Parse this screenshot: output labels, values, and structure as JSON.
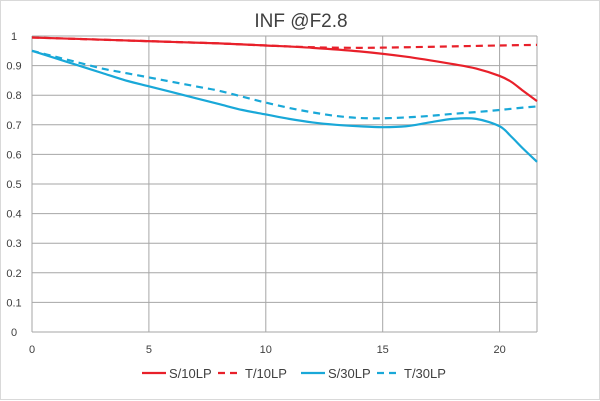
{
  "chart_data": {
    "type": "line",
    "title": "INF @F2.8",
    "xlabel": "",
    "ylabel": "",
    "xlim": [
      0,
      21.6
    ],
    "ylim": [
      0,
      1
    ],
    "x_ticks": [
      0,
      5,
      10,
      15,
      20
    ],
    "y_ticks": [
      0,
      0.1,
      0.2,
      0.3,
      0.4,
      0.5,
      0.6,
      0.7,
      0.8,
      0.9,
      1
    ],
    "x_tick_labels": [
      "0",
      "5",
      "10",
      "15",
      "20"
    ],
    "y_tick_labels": [
      "0",
      "0.1",
      "0.2",
      "0.3",
      "0.4",
      "0.5",
      "0.6",
      "0.7",
      "0.8",
      "0.9",
      "1"
    ],
    "grid": true,
    "legend_position": "bottom",
    "series": [
      {
        "name": "S/10LP",
        "color": "#e8202a",
        "dash": "solid",
        "x": [
          0,
          2,
          4,
          6,
          8,
          10,
          12,
          14,
          16,
          18,
          19,
          20,
          20.5,
          21,
          21.6
        ],
        "y": [
          0.995,
          0.99,
          0.985,
          0.98,
          0.975,
          0.968,
          0.96,
          0.948,
          0.93,
          0.905,
          0.89,
          0.865,
          0.845,
          0.815,
          0.78
        ]
      },
      {
        "name": "T/10LP",
        "color": "#e8202a",
        "dash": "dashed",
        "x": [
          0,
          2,
          4,
          6,
          8,
          10,
          12,
          14,
          16,
          18,
          20,
          21.6
        ],
        "y": [
          0.995,
          0.99,
          0.985,
          0.98,
          0.975,
          0.968,
          0.962,
          0.96,
          0.962,
          0.965,
          0.968,
          0.97
        ]
      },
      {
        "name": "S/30LP",
        "color": "#19a8d8",
        "dash": "solid",
        "x": [
          0,
          1,
          2,
          3,
          4,
          5,
          6,
          7,
          8,
          9,
          10,
          11,
          12,
          13,
          14,
          15,
          16,
          17,
          18,
          19,
          20,
          20.5,
          21,
          21.6
        ],
        "y": [
          0.95,
          0.925,
          0.9,
          0.875,
          0.85,
          0.83,
          0.81,
          0.79,
          0.77,
          0.75,
          0.735,
          0.72,
          0.708,
          0.7,
          0.695,
          0.692,
          0.695,
          0.708,
          0.72,
          0.72,
          0.695,
          0.66,
          0.62,
          0.575
        ]
      },
      {
        "name": "T/30LP",
        "color": "#19a8d8",
        "dash": "dashed",
        "x": [
          0,
          1,
          2,
          3,
          4,
          5,
          6,
          7,
          8,
          9,
          10,
          11,
          12,
          13,
          14,
          15,
          16,
          17,
          18,
          19,
          20,
          21,
          21.6
        ],
        "y": [
          0.95,
          0.93,
          0.91,
          0.89,
          0.875,
          0.86,
          0.845,
          0.83,
          0.815,
          0.795,
          0.775,
          0.757,
          0.742,
          0.73,
          0.723,
          0.722,
          0.725,
          0.73,
          0.737,
          0.743,
          0.75,
          0.758,
          0.762
        ]
      }
    ]
  }
}
